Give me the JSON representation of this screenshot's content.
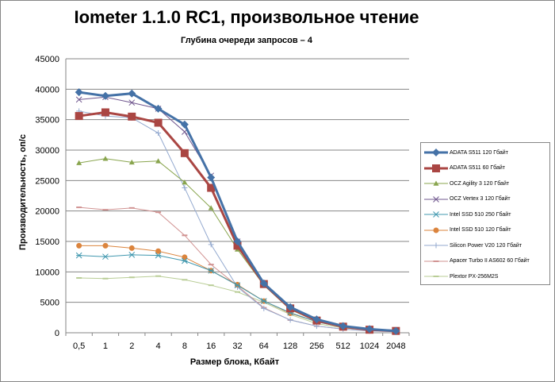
{
  "chart_data": {
    "type": "line",
    "title": "Iometer 1.1.0 RC1, произвольное чтение",
    "subtitle": "Глубина очереди запросов – 4",
    "xlabel": "Размер блока, Кбайт",
    "ylabel": "Производительность, оп/с",
    "ylim": [
      0,
      45000
    ],
    "yticks": [
      "0",
      "5000",
      "10000",
      "15000",
      "20000",
      "25000",
      "30000",
      "35000",
      "40000",
      "45000"
    ],
    "categories": [
      "0,5",
      "1",
      "2",
      "4",
      "8",
      "16",
      "32",
      "64",
      "128",
      "256",
      "512",
      "1024",
      "2048"
    ],
    "grid": true,
    "legend": "right",
    "series": [
      {
        "name": "ADATA  S511 120 Гбайт",
        "color": "#4572A7",
        "marker": "diamond",
        "width": 3,
        "values": [
          39500,
          38900,
          39300,
          36800,
          34200,
          25500,
          15000,
          8100,
          4200,
          2200,
          1100,
          600,
          300
        ]
      },
      {
        "name": "ADATA  S511 60 Гбайт",
        "color": "#AA4643",
        "marker": "square",
        "width": 3,
        "values": [
          35600,
          36200,
          35500,
          34500,
          29500,
          23800,
          14300,
          8000,
          4000,
          2000,
          1000,
          500,
          300
        ]
      },
      {
        "name": "OCZ Agility  3 120 Гбайт",
        "color": "#89A54E",
        "marker": "triangle",
        "width": 1,
        "values": [
          27900,
          28600,
          28000,
          28200,
          24700,
          20500,
          13700,
          7800,
          3800,
          1900,
          900,
          500,
          300
        ]
      },
      {
        "name": "OCZ Vertex  3 120 Гбайт",
        "color": "#71588F",
        "marker": "x",
        "width": 1,
        "values": [
          38300,
          38700,
          37800,
          36800,
          33000,
          25800,
          15000,
          8000,
          4000,
          2000,
          1000,
          500,
          300
        ]
      },
      {
        "name": "Intel  SSD 510 250 Гбайт",
        "color": "#4198AF",
        "marker": "star",
        "width": 1,
        "values": [
          12700,
          12500,
          12800,
          12700,
          11800,
          10200,
          7800,
          5200,
          3300,
          1800,
          900,
          500,
          300
        ]
      },
      {
        "name": "Intel  SSD 510 120 Гбайт",
        "color": "#DB843D",
        "marker": "circle",
        "width": 1,
        "values": [
          14300,
          14300,
          13900,
          13400,
          12400,
          10200,
          7900,
          5200,
          3200,
          1800,
          900,
          500,
          300
        ]
      },
      {
        "name": "Silicon  Power  V20 120 Гбайт",
        "color": "#93A9CF",
        "marker": "plus",
        "width": 1,
        "values": [
          36400,
          35600,
          35300,
          32800,
          23800,
          14500,
          7500,
          4000,
          2100,
          1100,
          600,
          300,
          200
        ]
      },
      {
        "name": "Apacer  Turbo  II  AS602 60 Гбайт",
        "color": "#D19392",
        "marker": "dash",
        "width": 1,
        "values": [
          20600,
          20200,
          20500,
          19800,
          16000,
          11200,
          7700,
          4100,
          2100,
          1100,
          600,
          300,
          200
        ]
      },
      {
        "name": "Plextor PX-256M2S",
        "color": "#B9CD96",
        "marker": "dash",
        "width": 1,
        "values": [
          9000,
          8900,
          9100,
          9300,
          8700,
          7800,
          6700,
          5000,
          3000,
          1500,
          800,
          400,
          200
        ]
      }
    ]
  }
}
